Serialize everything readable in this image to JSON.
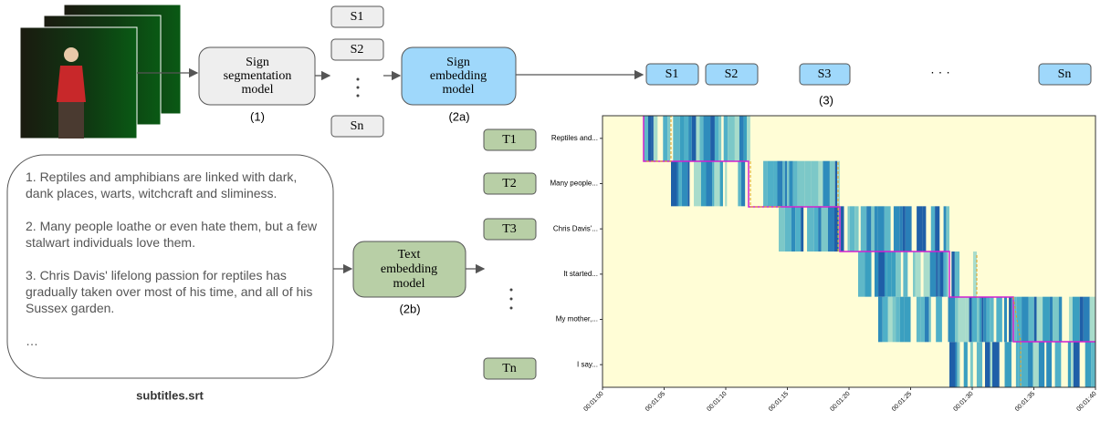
{
  "video": {
    "segmentation_model": "Sign segmentation model",
    "segmentation_step": "(1)",
    "segments": [
      "S1",
      "S2",
      "Sn"
    ],
    "embedding_model": "Sign embedding model",
    "embedding_step": "(2a)",
    "embedded_segments": [
      "S1",
      "S2",
      "S3",
      "Sn"
    ],
    "ellipsis": "· · ·",
    "alignment_step": "(3)"
  },
  "subtitles": {
    "paragraphs": [
      "1. Reptiles and amphibians are linked with dark, dank places, warts, witchcraft and sliminess.",
      "2. Many people loathe or even hate them, but a few stalwart individuals love them.",
      "3. Chris Davis' lifelong passion for reptiles has gradually taken over most of his time, and all of his Sussex garden.",
      "…"
    ],
    "filename": "subtitles.srt",
    "embedding_model": "Text embedding model",
    "embedding_step": "(2b)",
    "embedded_texts": [
      "T1",
      "T2",
      "T3",
      "Tn"
    ]
  },
  "heatmap": {
    "row_labels": [
      "Reptiles and...",
      "Many people...",
      "Chris Davis'...",
      "It started...",
      "My mother,...",
      "I say..."
    ],
    "x_labels": [
      "00:01:00",
      "00:01:05",
      "00:01:10",
      "00:01:15",
      "00:01:20",
      "00:01:25",
      "00:01:30",
      "00:01:35",
      "00:01:40"
    ]
  }
}
